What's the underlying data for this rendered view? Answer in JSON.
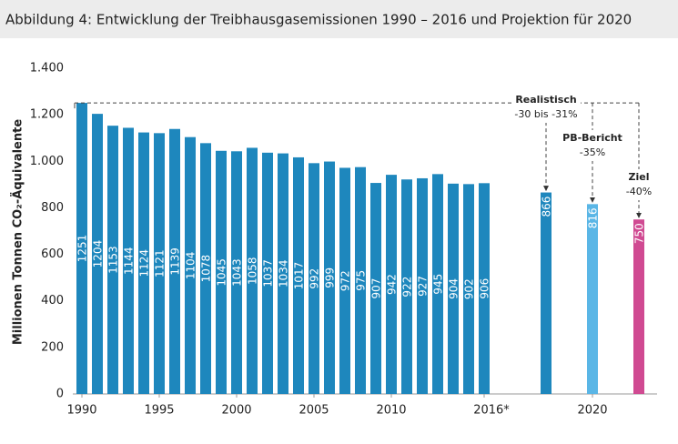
{
  "chart_data": {
    "type": "bar",
    "title": "Abbildung 4: Entwicklung der Treibhausgasemissionen 1990 – 2016 und Projektion für 2020",
    "y_label": "Millionen Tonnen CO₂-Äquivalente",
    "categories": [
      "1990",
      null,
      null,
      null,
      null,
      "1995",
      null,
      null,
      null,
      null,
      "2000",
      null,
      null,
      null,
      null,
      "2005",
      null,
      null,
      null,
      null,
      "2010",
      null,
      null,
      null,
      null,
      null,
      "2016*",
      null,
      null,
      null,
      null,
      null,
      null,
      "2020",
      null,
      null,
      null
    ],
    "values": [
      1251,
      1204,
      1153,
      1144,
      1124,
      1121,
      1139,
      1104,
      1078,
      1045,
      1043,
      1058,
      1037,
      1034,
      1017,
      992,
      999,
      972,
      975,
      907,
      942,
      922,
      927,
      945,
      904,
      902,
      906,
      null,
      null,
      null,
      866,
      null,
      null,
      816,
      null,
      null,
      750
    ],
    "colors": [
      "#1e87bd",
      "#1e87bd",
      "#1e87bd",
      "#1e87bd",
      "#1e87bd",
      "#1e87bd",
      "#1e87bd",
      "#1e87bd",
      "#1e87bd",
      "#1e87bd",
      "#1e87bd",
      "#1e87bd",
      "#1e87bd",
      "#1e87bd",
      "#1e87bd",
      "#1e87bd",
      "#1e87bd",
      "#1e87bd",
      "#1e87bd",
      "#1e87bd",
      "#1e87bd",
      "#1e87bd",
      "#1e87bd",
      "#1e87bd",
      "#1e87bd",
      "#1e87bd",
      "#1e87bd",
      null,
      null,
      null,
      "#1e87bd",
      null,
      null,
      "#5ab6e6",
      null,
      null,
      "#d04a92"
    ],
    "annotations": [
      {
        "index": 30,
        "title": "Realistisch",
        "text": "-30 bis -31%"
      },
      {
        "index": 33,
        "title": "PB-Bericht",
        "text": "-35%"
      },
      {
        "index": 36,
        "title": "Ziel",
        "text": "-40%"
      }
    ],
    "ylim": [
      0,
      1400
    ],
    "yticks": [
      0,
      200,
      400,
      600,
      800,
      {
        "value": 1000,
        "label": "1.000"
      },
      {
        "value": 1200,
        "label": "1.200"
      },
      {
        "value": 1400,
        "label": "1.400"
      }
    ]
  }
}
